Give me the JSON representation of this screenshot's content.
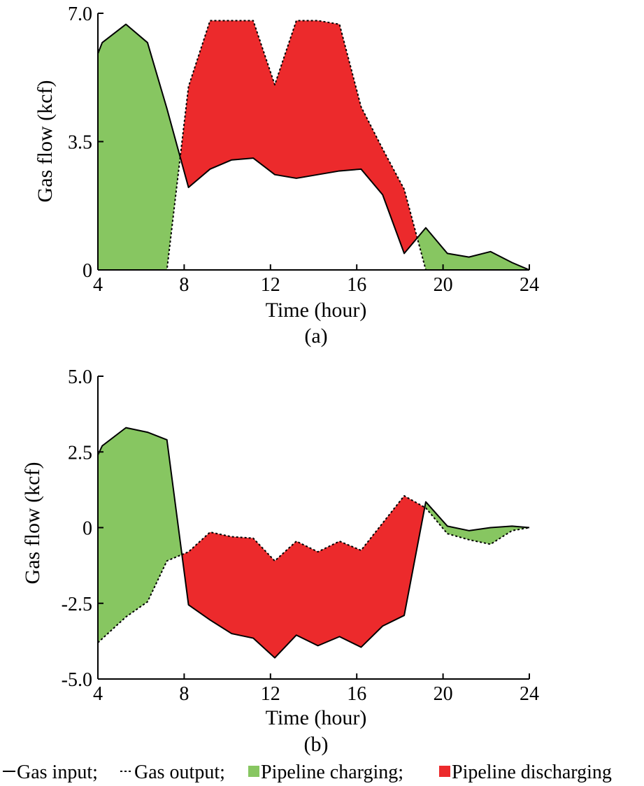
{
  "colors": {
    "charging": "#87c661",
    "discharging": "#ec2a2c",
    "line": "#000000"
  },
  "legend": {
    "input_label": "Gas input;",
    "output_label": "Gas output;",
    "charging_label": "Pipeline charging;",
    "discharging_label": "Pipeline discharging"
  },
  "chart_data": [
    {
      "type": "area",
      "caption": "(a)",
      "xlabel": "Time (hour)",
      "ylabel": "Gas flow (kcf)",
      "xlim": [
        4,
        24
      ],
      "ylim": [
        0,
        7.0
      ],
      "xticks": [
        "4",
        "8",
        "12",
        "16",
        "20",
        "24"
      ],
      "yticks": [
        "0",
        "3.5",
        "7.0"
      ],
      "series": [
        {
          "name": "Gas input",
          "style": "solid",
          "x": [
            4,
            4.2,
            5.3,
            6.3,
            7.2,
            8.2,
            9.2,
            10.2,
            11.2,
            12.2,
            13.2,
            14.2,
            15.2,
            16.2,
            17.2,
            18.2,
            19.2,
            20.2,
            21.2,
            22.2,
            23.2,
            24
          ],
          "y": [
            5.9,
            6.2,
            6.7,
            6.2,
            4.4,
            2.25,
            2.75,
            3.0,
            3.05,
            2.6,
            2.5,
            2.6,
            2.7,
            2.75,
            2.05,
            0.45,
            1.15,
            0.45,
            0.35,
            0.5,
            0.2,
            0
          ]
        },
        {
          "name": "Gas output",
          "style": "dashed",
          "x": [
            4,
            7.2,
            8.2,
            9.2,
            10.2,
            11.2,
            12.2,
            13.2,
            14.2,
            15.2,
            16.2,
            17.2,
            18.2,
            19.2,
            20.2,
            21.2,
            22.2,
            23.2,
            24
          ],
          "y": [
            0,
            0,
            5.0,
            6.8,
            6.8,
            6.8,
            5.05,
            6.8,
            6.8,
            6.7,
            4.45,
            3.3,
            2.2,
            0,
            0,
            0,
            0,
            0,
            0
          ]
        }
      ]
    },
    {
      "type": "area",
      "caption": "(b)",
      "xlabel": "Time (hour)",
      "ylabel": "Gas flow (kcf)",
      "xlim": [
        4,
        24
      ],
      "ylim": [
        -5.0,
        5.0
      ],
      "xticks": [
        "4",
        "8",
        "12",
        "16",
        "20",
        "24"
      ],
      "yticks": [
        "-5.0",
        "-2.5",
        "0",
        "2.5",
        "5.0"
      ],
      "series": [
        {
          "name": "Gas input",
          "style": "solid",
          "x": [
            4,
            4.2,
            5.3,
            6.3,
            7.2,
            8.2,
            9.2,
            10.2,
            11.2,
            12.2,
            13.2,
            14.2,
            15.2,
            16.2,
            17.2,
            18.2,
            19.2,
            20.2,
            21.2,
            22.2,
            23.2,
            24
          ],
          "y": [
            2.4,
            2.7,
            3.3,
            3.15,
            2.9,
            -2.55,
            -3.05,
            -3.5,
            -3.65,
            -4.3,
            -3.55,
            -3.9,
            -3.6,
            -3.95,
            -3.25,
            -2.9,
            0.85,
            0.05,
            -0.1,
            0.0,
            0.05,
            0.0
          ]
        },
        {
          "name": "Gas output",
          "style": "dashed",
          "x": [
            4,
            5.3,
            6.3,
            7.2,
            8.2,
            9.2,
            10.2,
            11.2,
            12.2,
            13.2,
            14.2,
            15.2,
            16.2,
            17.2,
            18.2,
            19.2,
            20.2,
            21.2,
            22.2,
            23.2,
            24
          ],
          "y": [
            -3.8,
            -2.95,
            -2.45,
            -1.1,
            -0.8,
            -0.15,
            -0.3,
            -0.35,
            -1.1,
            -0.45,
            -0.8,
            -0.45,
            -0.75,
            0.15,
            1.05,
            0.65,
            -0.2,
            -0.4,
            -0.55,
            -0.1,
            0.0
          ]
        }
      ]
    }
  ]
}
